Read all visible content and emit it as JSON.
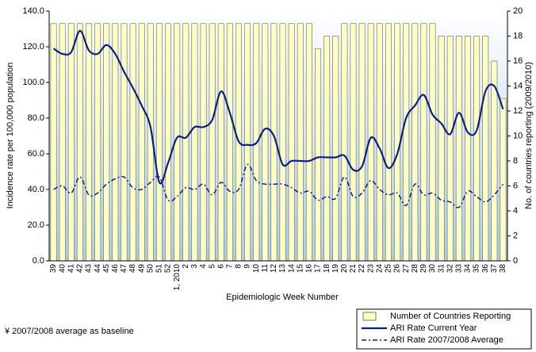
{
  "chart_data": {
    "type": "bar-line",
    "x_label": "Epidemiologic Week Number",
    "y_label": "Incidence rate per 100,000 population",
    "y2_label": "No. of countries reporting (2009/2010)",
    "footnote": "¥ 2007/2008 average as baseline",
    "categories": [
      "39",
      "40",
      "41",
      "42",
      "43",
      "44",
      "45",
      "46",
      "47",
      "48",
      "49",
      "50",
      "51",
      "52",
      "1, 2010",
      "2",
      "3",
      "4",
      "5",
      "6",
      "7",
      "8",
      "9",
      "10",
      "11",
      "12",
      "13",
      "14",
      "15",
      "16",
      "17",
      "18",
      "19",
      "20",
      "21",
      "22",
      "23",
      "24",
      "25",
      "26",
      "27",
      "28",
      "29",
      "30",
      "31",
      "32",
      "33",
      "34",
      "35",
      "36",
      "37",
      "38"
    ],
    "series": [
      {
        "name": "Number of Countries Reporting",
        "kind": "bar",
        "axis": "y2",
        "color": "#ffffc0",
        "values": [
          19,
          19,
          19,
          19,
          19,
          19,
          19,
          19,
          19,
          19,
          19,
          19,
          19,
          19,
          19,
          19,
          19,
          19,
          19,
          19,
          19,
          19,
          19,
          19,
          19,
          19,
          19,
          19,
          19,
          19,
          17,
          18,
          18,
          19,
          19,
          19,
          19,
          19,
          19,
          19,
          19,
          19,
          19,
          19,
          18,
          18,
          18,
          18,
          18,
          18,
          16,
          13
        ]
      },
      {
        "name": "ARI Rate Current Year",
        "kind": "line",
        "color": "#0a1f8f",
        "values": [
          119,
          116,
          117,
          129,
          118,
          116,
          121,
          116,
          106,
          97,
          87,
          75,
          44,
          55,
          69,
          69,
          75,
          75,
          79,
          95,
          83,
          67,
          65,
          66,
          74,
          70,
          54,
          56,
          56,
          56,
          58,
          58,
          58,
          59,
          51,
          53,
          69,
          63,
          52,
          60,
          80,
          87,
          93,
          82,
          77,
          71,
          83,
          72,
          73,
          95,
          98,
          85
        ]
      },
      {
        "name": "ARI Rate 2007/2008 Average",
        "kind": "line",
        "dash": true,
        "color": "#0a1f8f",
        "values": [
          40,
          42,
          38,
          47,
          37,
          38,
          43,
          46,
          47,
          41,
          40,
          44,
          47,
          34,
          36,
          41,
          40,
          43,
          37,
          44,
          39,
          40,
          54,
          45,
          43,
          43,
          43,
          41,
          38,
          39,
          34,
          36,
          35,
          47,
          36,
          38,
          45,
          40,
          37,
          38,
          31,
          43,
          37,
          38,
          34,
          33,
          30,
          39,
          36,
          33,
          37,
          43
        ]
      }
    ],
    "ylim": [
      0,
      140
    ],
    "yticks": [
      {
        "value": 0,
        "label": "0.0"
      },
      {
        "value": 20,
        "label": "20.0"
      },
      {
        "value": 40,
        "label": "40.0"
      },
      {
        "value": 60,
        "label": "60.0"
      },
      {
        "value": 80,
        "label": "80.0"
      },
      {
        "value": 100,
        "label": "100.0"
      },
      {
        "value": 120,
        "label": "120.0"
      },
      {
        "value": 140,
        "label": "140.0"
      }
    ],
    "y2lim": [
      0,
      20
    ],
    "y2ticks": [
      0,
      2,
      4,
      6,
      8,
      10,
      12,
      14,
      16,
      18,
      20
    ]
  }
}
